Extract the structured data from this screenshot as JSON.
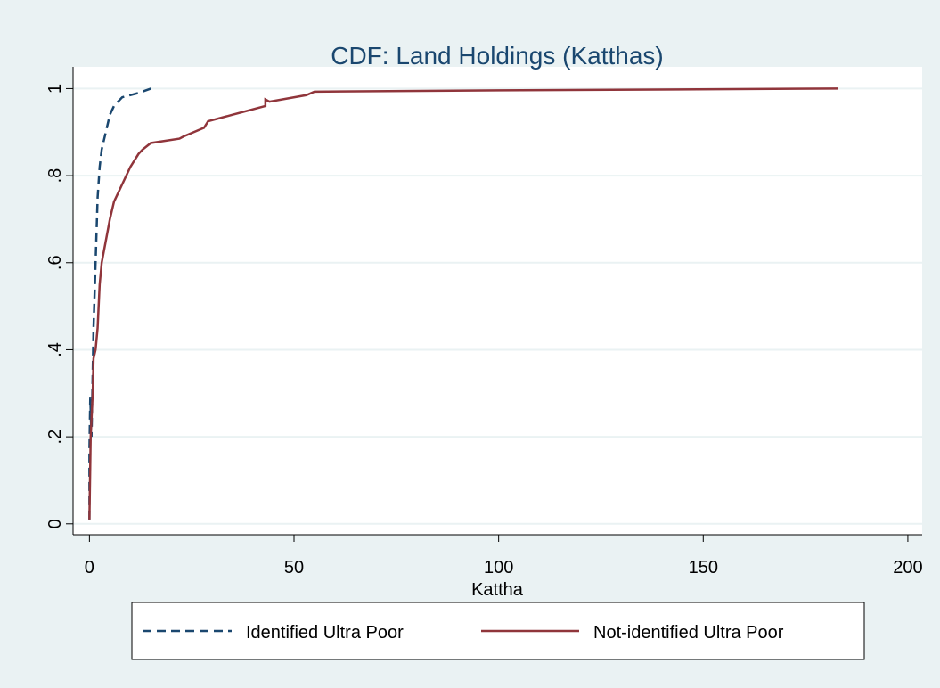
{
  "chart_data": {
    "type": "line",
    "title": "CDF: Land Holdings (Katthas)",
    "x_label": "Kattha",
    "xlim": [
      -4,
      203.5
    ],
    "ylim": [
      -0.025,
      1.05
    ],
    "xticks": [
      0,
      50,
      100,
      150,
      200
    ],
    "yticks": [
      0,
      {
        "value": 0.2,
        "label": ".2"
      },
      {
        "value": 0.4,
        "label": ".4"
      },
      {
        "value": 0.6,
        "label": ".6"
      },
      {
        "value": 0.8,
        "label": ".8"
      },
      1
    ],
    "grid": true,
    "legend": "bottom",
    "series": [
      {
        "name": "Identified Ultra Poor",
        "color": "#1a476f",
        "line_style": "dashed",
        "x": [
          0,
          0,
          0.2,
          0.5,
          0.8,
          1,
          1.5,
          2,
          2.5,
          3,
          4,
          5,
          6,
          8,
          12,
          15
        ],
        "values": [
          0.01,
          0.17,
          0.29,
          0.2,
          0.35,
          0.45,
          0.6,
          0.75,
          0.82,
          0.86,
          0.9,
          0.94,
          0.96,
          0.98,
          0.99,
          1
        ]
      },
      {
        "name": "Not-identified Ultra Poor",
        "color": "#90353b",
        "line_style": "solid",
        "x": [
          0,
          0.3,
          0.8,
          1,
          1.5,
          2,
          2.5,
          3,
          4,
          5,
          6,
          8,
          10,
          12,
          13,
          15,
          22,
          23,
          28,
          29,
          35,
          43,
          43,
          44,
          53,
          55,
          100,
          183
        ],
        "values": [
          0.01,
          0.2,
          0.3,
          0.38,
          0.4,
          0.45,
          0.55,
          0.6,
          0.65,
          0.7,
          0.74,
          0.78,
          0.82,
          0.85,
          0.86,
          0.875,
          0.885,
          0.89,
          0.91,
          0.925,
          0.94,
          0.96,
          0.975,
          0.97,
          0.985,
          0.993,
          0.996,
          1
        ]
      }
    ]
  }
}
